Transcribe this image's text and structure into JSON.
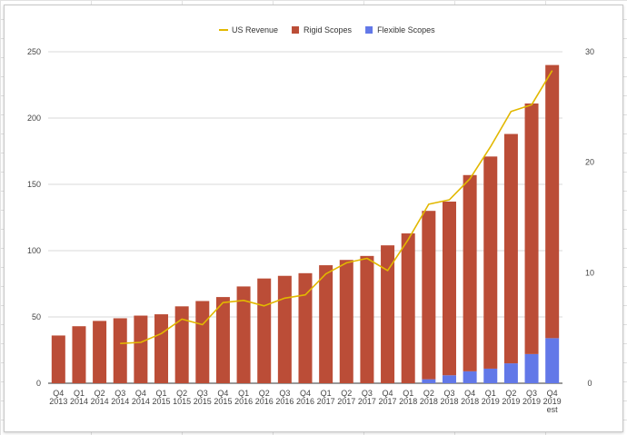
{
  "chart_data": {
    "type": "bar",
    "title": "",
    "xlabel": "",
    "ylabel": "",
    "stacked": true,
    "categories": [
      [
        "Q4",
        "2013"
      ],
      [
        "Q1",
        "2014"
      ],
      [
        "Q2",
        "2014"
      ],
      [
        "Q3",
        "2014"
      ],
      [
        "Q4",
        "2014"
      ],
      [
        "Q1",
        "2015"
      ],
      [
        "Q2",
        "1015"
      ],
      [
        "Q3",
        "2015"
      ],
      [
        "Q4",
        "2015"
      ],
      [
        "Q1",
        "2016"
      ],
      [
        "Q2",
        "2016"
      ],
      [
        "Q3",
        "2016"
      ],
      [
        "Q4",
        "2016"
      ],
      [
        "Q1",
        "2017"
      ],
      [
        "Q2",
        "2017"
      ],
      [
        "Q3",
        "2017"
      ],
      [
        "Q4",
        "2017"
      ],
      [
        "Q1",
        "2018"
      ],
      [
        "Q2",
        "2018"
      ],
      [
        "Q3",
        "2018"
      ],
      [
        "Q4",
        "2018"
      ],
      [
        "Q1",
        "2019"
      ],
      [
        "Q2",
        "2019"
      ],
      [
        "Q3",
        "2019"
      ],
      [
        "Q4",
        "2019",
        "est"
      ]
    ],
    "y_left": {
      "ylim": [
        0,
        250
      ],
      "ticks": [
        "0",
        "50",
        "100",
        "150",
        "200",
        "250"
      ]
    },
    "y_right": {
      "ylim": [
        0,
        30
      ],
      "ticks": [
        "0",
        "10",
        "20",
        "30"
      ]
    },
    "legend": {
      "placement": "top-center"
    },
    "grid": true,
    "series": [
      {
        "name": "US Revenue",
        "kind": "line",
        "axis": "right",
        "color": "#e2b800",
        "values": [
          null,
          null,
          null,
          3.6,
          3.7,
          4.5,
          5.8,
          5.3,
          7.3,
          7.5,
          7.0,
          7.7,
          8.0,
          9.9,
          10.9,
          11.3,
          10.2,
          13.0,
          16.2,
          16.6,
          18.5,
          21.4,
          24.6,
          25.2,
          28.3
        ]
      },
      {
        "name": "Rigid Scopes",
        "kind": "bar",
        "axis": "left",
        "color": "#bb4d37",
        "values": [
          36,
          43,
          47,
          49,
          51,
          52,
          58,
          62,
          65,
          73,
          79,
          81,
          83,
          89,
          93,
          96,
          104,
          113,
          127,
          131,
          148,
          160,
          173,
          189,
          206
        ]
      },
      {
        "name": "Flexible Scopes",
        "kind": "bar",
        "axis": "left",
        "color": "#6278e8",
        "values": [
          0,
          0,
          0,
          0,
          0,
          0,
          0,
          0,
          0,
          0,
          0,
          0,
          0,
          0,
          0,
          0,
          0,
          0,
          3,
          6,
          9,
          11,
          15,
          22,
          34
        ]
      }
    ]
  }
}
